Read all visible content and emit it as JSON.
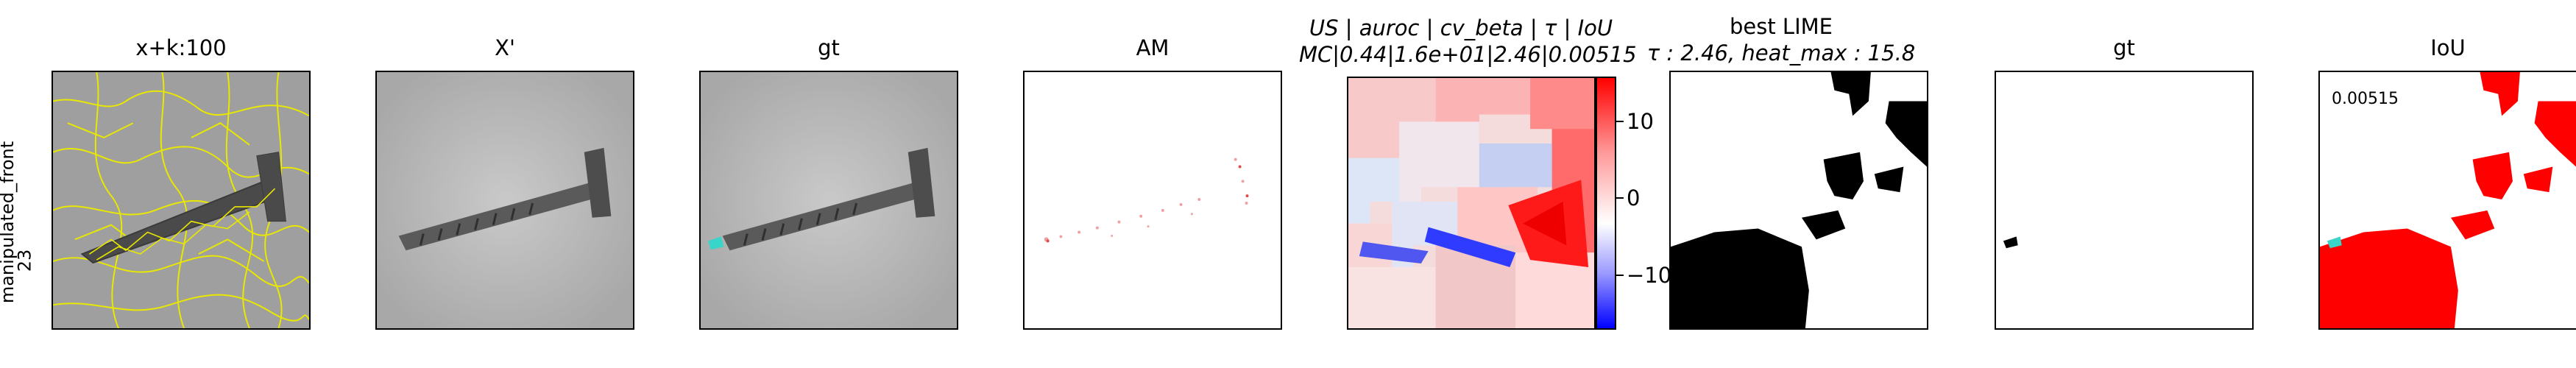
{
  "row_label": {
    "line1": "manipulated_front",
    "line2": "23"
  },
  "panels": [
    {
      "title": "x+k:100",
      "icon": "screw-with-superpixels"
    },
    {
      "title": "X'",
      "icon": "screw-grayscale"
    },
    {
      "title": "gt",
      "icon": "screw-with-gt-marker"
    },
    {
      "title": "AM",
      "icon": "attention-map"
    },
    {
      "title_line1": "US | auroc | cv_beta | τ | IoU",
      "title_line2": "MC|0.44|1.6e+01|2.46|0.00515",
      "icon": "signed-heatmap"
    },
    {
      "title_line1": "best LIME",
      "title_line2": "τ : 2.46, heat_max : 15.8",
      "icon": "binary-mask"
    },
    {
      "title": "gt",
      "icon": "gt-mask"
    },
    {
      "title": "IoU",
      "value": "0.00515",
      "icon": "iou-overlay"
    }
  ],
  "colorbar": {
    "ticks": [
      "−10",
      "0",
      "10"
    ],
    "colors": [
      "#0000ff",
      "#ffffff",
      "#ff0000"
    ]
  }
}
